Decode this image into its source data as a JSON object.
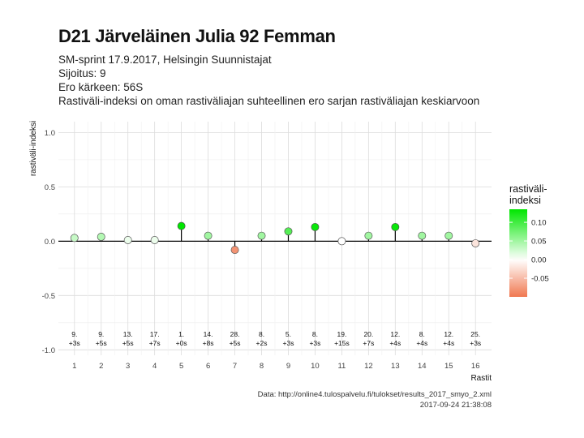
{
  "header": {
    "title": "D21 Järveläinen Julia 92 Femman",
    "subtitle_lines": [
      "SM-sprint 17.9.2017, Helsingin Suunnistajat",
      "Sijoitus: 9",
      "Ero kärkeen: 56S",
      "Rastiväli-indeksi on oman rastiväliajan suhteellinen ero sarjan rastiväliajan keskiarvoon"
    ]
  },
  "footer": {
    "source": "Data: http://online4.tulospalvelu.fi/tulokset/results_2017_smyo_2.xml",
    "timestamp": "2017-09-24 21:38:08"
  },
  "legend": {
    "title_lines": [
      "rastiväli-",
      "indeksi"
    ],
    "ticks": [
      0.1,
      0.05,
      0.0,
      -0.05
    ],
    "tick_labels": [
      "0.10",
      "0.05",
      "0.00",
      "-0.05"
    ],
    "colors": {
      "high": "#00e600",
      "mid": "#ffffff",
      "low": "#f07850"
    }
  },
  "chart_data": {
    "type": "scatter",
    "xlabel": "Rastit",
    "ylabel": "rastiväli-indeksi",
    "x": [
      1,
      2,
      3,
      4,
      5,
      6,
      7,
      8,
      9,
      10,
      11,
      12,
      13,
      14,
      15,
      16
    ],
    "y": [
      0.03,
      0.04,
      0.01,
      0.01,
      0.14,
      0.05,
      -0.08,
      0.05,
      0.09,
      0.13,
      0.0,
      0.05,
      0.13,
      0.05,
      0.05,
      -0.02
    ],
    "rank_labels": [
      "9.",
      "9.",
      "13.",
      "17.",
      "1.",
      "14.",
      "28.",
      "8.",
      "5.",
      "8.",
      "19.",
      "20.",
      "12.",
      "8.",
      "12.",
      "25."
    ],
    "diff_labels": [
      "+3s",
      "+5s",
      "+5s",
      "+7s",
      "+0s",
      "+8s",
      "+5s",
      "+2s",
      "+3s",
      "+3s",
      "+15s",
      "+7s",
      "+4s",
      "+4s",
      "+4s",
      "+3s"
    ],
    "xlim": [
      0.4,
      16.6
    ],
    "ylim": [
      -1.05,
      1.1
    ],
    "yticks": [
      1.0,
      0.5,
      0.0,
      -0.5,
      -1.0
    ],
    "ytick_labels": [
      "1.0",
      "0.5",
      "0.0",
      "-0.5",
      "-1.0"
    ],
    "xtick_labels": [
      "1",
      "2",
      "3",
      "4",
      "5",
      "6",
      "7",
      "8",
      "9",
      "10",
      "11",
      "12",
      "13",
      "14",
      "15",
      "16"
    ],
    "grid": true,
    "legend_position": "right"
  }
}
